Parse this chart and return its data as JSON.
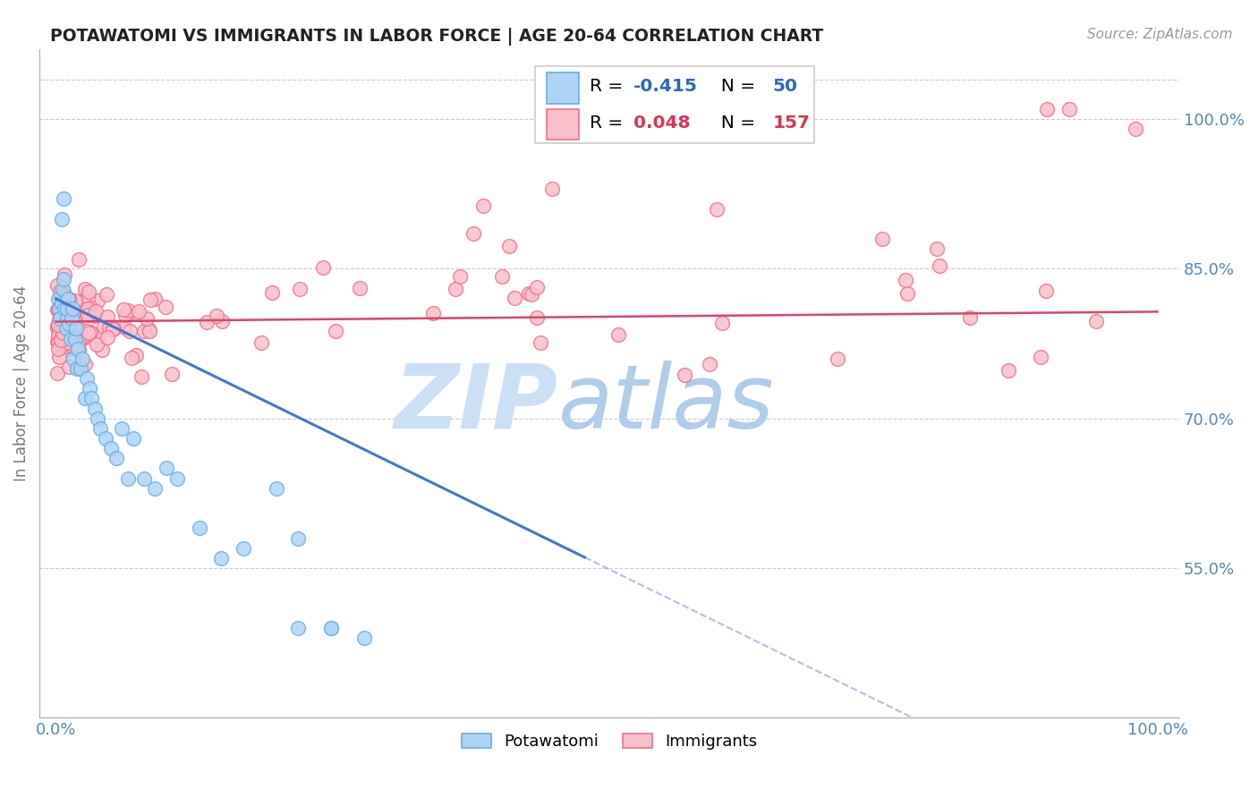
{
  "title": "POTAWATOMI VS IMMIGRANTS IN LABOR FORCE | AGE 20-64 CORRELATION CHART",
  "source": "Source: ZipAtlas.com",
  "ylabel": "In Labor Force | Age 20-64",
  "background_color": "#ffffff",
  "grid_color": "#cccccc",
  "blue_fill": "#aed4f5",
  "blue_edge": "#6aaee0",
  "pink_fill": "#f9c0cb",
  "pink_edge": "#f07090",
  "blue_line_color": "#4477cc",
  "pink_line_color": "#dd4466",
  "blue_r_color": "#3366bb",
  "pink_r_color": "#dd3355",
  "blue_n_color": "#3366bb",
  "pink_n_color": "#dd3355",
  "legend_R_blue": "-0.415",
  "legend_N_blue": "50",
  "legend_R_pink": "0.048",
  "legend_N_pink": "157",
  "watermark_zip_color": "#cce0f5",
  "watermark_atlas_color": "#b0cce8",
  "tick_color": "#5588bb"
}
